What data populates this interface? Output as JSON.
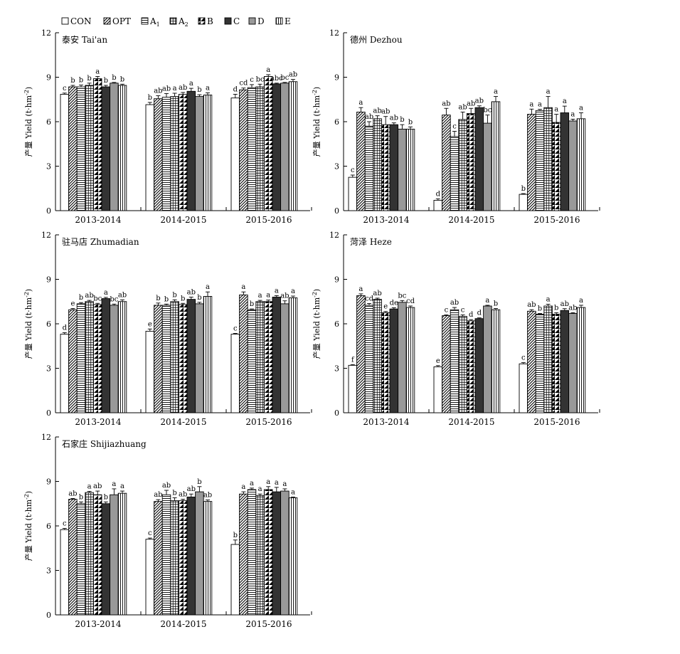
{
  "legend": {
    "items": [
      {
        "label": "CON",
        "sub": ""
      },
      {
        "label": "OPT",
        "sub": ""
      },
      {
        "label": "A",
        "sub": "1"
      },
      {
        "label": "A",
        "sub": "2"
      },
      {
        "label": "B",
        "sub": ""
      },
      {
        "label": "C",
        "sub": ""
      },
      {
        "label": "D",
        "sub": ""
      },
      {
        "label": "E",
        "sub": ""
      }
    ]
  },
  "y_axis_label": {
    "main": "产量 Yield (t·hm",
    "sup": "-2",
    "close": ")"
  },
  "chart_data": [
    {
      "type": "bar",
      "title": "泰安 Tai'an",
      "categories": [
        "2013-2014",
        "2014-2015",
        "2015-2016"
      ],
      "ylim": [
        0,
        12
      ],
      "yticks": [
        0,
        3,
        6,
        9,
        12
      ],
      "legend": "top",
      "grid": false,
      "series": [
        {
          "name": "CON",
          "values": [
            7.85,
            7.15,
            7.6
          ],
          "errors": [
            0.08,
            0.15,
            0.25
          ],
          "labels": [
            "c",
            "b",
            "d"
          ]
        },
        {
          "name": "OPT",
          "values": [
            8.35,
            7.55,
            8.15
          ],
          "errors": [
            0.1,
            0.2,
            0.12
          ],
          "labels": [
            "b",
            "ab",
            "cd"
          ]
        },
        {
          "name": "A1",
          "values": [
            8.35,
            7.65,
            8.3
          ],
          "errors": [
            0.12,
            0.25,
            0.2
          ],
          "labels": [
            "b",
            "ab",
            "c"
          ]
        },
        {
          "name": "A2",
          "values": [
            8.45,
            7.7,
            8.35
          ],
          "errors": [
            0.15,
            0.22,
            0.18
          ],
          "labels": [
            "b",
            "a",
            "bc"
          ]
        },
        {
          "name": "B",
          "values": [
            8.9,
            7.85,
            9.05
          ],
          "errors": [
            0.15,
            0.12,
            0.12
          ],
          "labels": [
            "a",
            "ab",
            "a"
          ]
        },
        {
          "name": "C",
          "values": [
            8.35,
            8.05,
            8.55
          ],
          "errors": [
            0.1,
            0.2,
            0.05
          ],
          "labels": [
            "b",
            "a",
            "abc"
          ]
        },
        {
          "name": "D",
          "values": [
            8.6,
            7.7,
            8.6
          ],
          "errors": [
            0.05,
            0.12,
            0.05
          ],
          "labels": [
            "b",
            "b",
            "bc"
          ]
        },
        {
          "name": "E",
          "values": [
            8.45,
            7.8,
            8.7
          ],
          "errors": [
            0.08,
            0.15,
            0.15
          ],
          "labels": [
            "b",
            "a",
            "ab"
          ]
        }
      ]
    },
    {
      "type": "bar",
      "title": "德州 Dezhou",
      "categories": [
        "2013-2014",
        "2014-2015",
        "2015-2016"
      ],
      "ylim": [
        0,
        12
      ],
      "yticks": [
        0,
        3,
        6,
        9,
        12
      ],
      "legend": "top",
      "grid": false,
      "series": [
        {
          "name": "CON",
          "values": [
            2.25,
            0.7,
            1.1
          ],
          "errors": [
            0.15,
            0.1,
            0.05
          ],
          "labels": [
            "c",
            "d",
            "b"
          ]
        },
        {
          "name": "OPT",
          "values": [
            6.65,
            6.45,
            6.5
          ],
          "errors": [
            0.3,
            0.45,
            0.35
          ],
          "labels": [
            "a",
            "ab",
            "a"
          ]
        },
        {
          "name": "A1",
          "values": [
            5.7,
            5.0,
            6.75
          ],
          "errors": [
            0.3,
            0.35,
            0.08
          ],
          "labels": [
            "ab",
            "c",
            "a"
          ]
        },
        {
          "name": "A2",
          "values": [
            6.2,
            6.15,
            6.95
          ],
          "errors": [
            0.2,
            0.5,
            0.75
          ],
          "labels": [
            "ab",
            "ab",
            "a"
          ]
        },
        {
          "name": "B",
          "values": [
            5.8,
            6.55,
            5.95
          ],
          "errors": [
            0.55,
            0.35,
            0.55
          ],
          "labels": [
            "ab",
            "ab",
            "a"
          ]
        },
        {
          "name": "C",
          "values": [
            5.8,
            6.95,
            6.6
          ],
          "errors": [
            0.12,
            0.12,
            0.45
          ],
          "labels": [
            "ab",
            "ab",
            "a"
          ]
        },
        {
          "name": "D",
          "values": [
            5.5,
            5.9,
            6.05
          ],
          "errors": [
            0.3,
            0.55,
            0.12
          ],
          "labels": [
            "b",
            "bc",
            "a"
          ]
        },
        {
          "name": "E",
          "values": [
            5.5,
            7.35,
            6.2
          ],
          "errors": [
            0.15,
            0.35,
            0.4
          ],
          "labels": [
            "b",
            "a",
            "a"
          ]
        }
      ]
    },
    {
      "type": "bar",
      "title": "驻马店 Zhumadian",
      "categories": [
        "2013-2014",
        "2014-2015",
        "2015-2016"
      ],
      "ylim": [
        0,
        12
      ],
      "yticks": [
        0,
        3,
        6,
        9,
        12
      ],
      "legend": "top",
      "grid": false,
      "series": [
        {
          "name": "CON",
          "values": [
            5.3,
            5.5,
            5.3
          ],
          "errors": [
            0.1,
            0.15,
            0.05
          ],
          "labels": [
            "d",
            "e",
            "c"
          ]
        },
        {
          "name": "OPT",
          "values": [
            6.95,
            7.25,
            7.95
          ],
          "errors": [
            0.08,
            0.15,
            0.2
          ],
          "labels": [
            "e",
            "b",
            "a"
          ]
        },
        {
          "name": "A1",
          "values": [
            7.35,
            7.25,
            6.95
          ],
          "errors": [
            0.08,
            0.08,
            0.05
          ],
          "labels": [
            "b",
            "b",
            "b"
          ]
        },
        {
          "name": "A2",
          "values": [
            7.5,
            7.5,
            7.5
          ],
          "errors": [
            0.08,
            0.12,
            0.08
          ],
          "labels": [
            "ab",
            "b",
            "a"
          ]
        },
        {
          "name": "B",
          "values": [
            7.3,
            7.3,
            7.5
          ],
          "errors": [
            0.08,
            0.08,
            0.1
          ],
          "labels": [
            "bc",
            "b",
            "a"
          ]
        },
        {
          "name": "C",
          "values": [
            7.7,
            7.65,
            7.8
          ],
          "errors": [
            0.08,
            0.15,
            0.1
          ],
          "labels": [
            "a",
            "ab",
            "a"
          ]
        },
        {
          "name": "D",
          "values": [
            7.25,
            7.35,
            7.35
          ],
          "errors": [
            0.08,
            0.1,
            0.2
          ],
          "labels": [
            "bc",
            "b",
            "ab"
          ]
        },
        {
          "name": "E",
          "values": [
            7.5,
            7.85,
            7.75
          ],
          "errors": [
            0.12,
            0.3,
            0.12
          ],
          "labels": [
            "ab",
            "a",
            "a"
          ]
        }
      ]
    },
    {
      "type": "bar",
      "title": "菏泽 Heze",
      "categories": [
        "2013-2014",
        "2014-2015",
        "2015-2016"
      ],
      "ylim": [
        0,
        12
      ],
      "yticks": [
        0,
        3,
        6,
        9,
        12
      ],
      "legend": "top",
      "grid": false,
      "series": [
        {
          "name": "CON",
          "values": [
            3.2,
            3.1,
            3.3
          ],
          "errors": [
            0.05,
            0.08,
            0.08
          ],
          "labels": [
            "f",
            "e",
            "c"
          ]
        },
        {
          "name": "OPT",
          "values": [
            7.9,
            6.55,
            6.85
          ],
          "errors": [
            0.12,
            0.05,
            0.1
          ],
          "labels": [
            "a",
            "c",
            "ab"
          ]
        },
        {
          "name": "A1",
          "values": [
            7.25,
            6.95,
            6.65
          ],
          "errors": [
            0.12,
            0.15,
            0.05
          ],
          "labels": [
            "cd",
            "ab",
            "b"
          ]
        },
        {
          "name": "A2",
          "values": [
            7.65,
            6.5,
            7.2
          ],
          "errors": [
            0.08,
            0.1,
            0.12
          ],
          "labels": [
            "ab",
            "c",
            "a"
          ]
        },
        {
          "name": "B",
          "values": [
            6.75,
            6.2,
            6.65
          ],
          "errors": [
            0.08,
            0.08,
            0.1
          ],
          "labels": [
            "e",
            "d",
            "b"
          ]
        },
        {
          "name": "C",
          "values": [
            7.0,
            6.35,
            6.9
          ],
          "errors": [
            0.08,
            0.05,
            0.12
          ],
          "labels": [
            "de",
            "d",
            "ab"
          ]
        },
        {
          "name": "D",
          "values": [
            7.45,
            7.2,
            6.7
          ],
          "errors": [
            0.12,
            0.05,
            0.05
          ],
          "labels": [
            "bc",
            "a",
            "ab"
          ]
        },
        {
          "name": "E",
          "values": [
            7.1,
            6.95,
            7.1
          ],
          "errors": [
            0.1,
            0.08,
            0.15
          ],
          "labels": [
            "cd",
            "b",
            "a"
          ]
        }
      ]
    },
    {
      "type": "bar",
      "title": "石家庄 Shijiazhuang",
      "categories": [
        "2013-2014",
        "2014-2015",
        "2015-2016"
      ],
      "ylim": [
        0,
        12
      ],
      "yticks": [
        0,
        3,
        6,
        9,
        12
      ],
      "legend": "top",
      "grid": false,
      "series": [
        {
          "name": "CON",
          "values": [
            5.75,
            5.1,
            4.75
          ],
          "errors": [
            0.08,
            0.08,
            0.3
          ],
          "labels": [
            "c",
            "c",
            "b"
          ]
        },
        {
          "name": "OPT",
          "values": [
            7.8,
            7.65,
            8.15
          ],
          "errors": [
            0.05,
            0.12,
            0.15
          ],
          "labels": [
            "ab",
            "ab",
            "a"
          ]
        },
        {
          "name": "A1",
          "values": [
            7.5,
            8.1,
            8.45
          ],
          "errors": [
            0.12,
            0.3,
            0.1
          ],
          "labels": [
            "b",
            "ab",
            "a"
          ]
        },
        {
          "name": "A2",
          "values": [
            8.25,
            7.7,
            8.05
          ],
          "errors": [
            0.08,
            0.2,
            0.1
          ],
          "labels": [
            "a",
            "b",
            "a"
          ]
        },
        {
          "name": "B",
          "values": [
            8.1,
            7.7,
            8.45
          ],
          "errors": [
            0.25,
            0.1,
            0.2
          ],
          "labels": [
            "ab",
            "ab",
            "a"
          ]
        },
        {
          "name": "C",
          "values": [
            7.5,
            7.95,
            8.3
          ],
          "errors": [
            0.12,
            0.2,
            0.3
          ],
          "labels": [
            "b",
            "ab",
            "a"
          ]
        },
        {
          "name": "D",
          "values": [
            8.1,
            8.3,
            8.35
          ],
          "errors": [
            0.4,
            0.35,
            0.15
          ],
          "labels": [
            "a",
            "b",
            "a"
          ]
        },
        {
          "name": "E",
          "values": [
            8.2,
            7.65,
            7.9
          ],
          "errors": [
            0.15,
            0.1,
            0.05
          ],
          "labels": [
            "a",
            "ab",
            "a"
          ]
        }
      ]
    }
  ]
}
